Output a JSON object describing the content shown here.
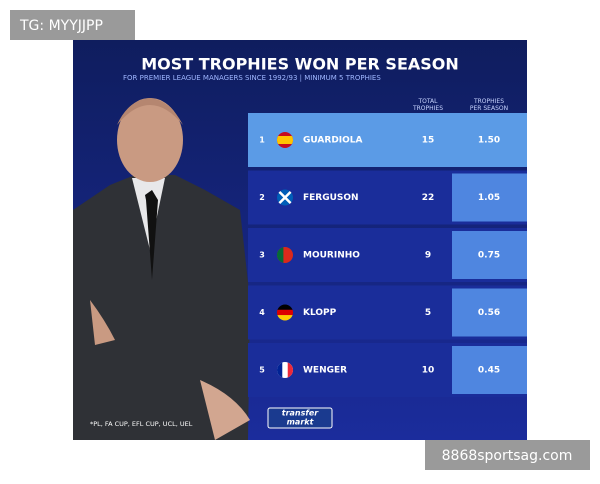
{
  "header": {
    "tag": "TG: MYYJJPP",
    "title": "MOST TROPHIES WON PER SEASON",
    "subtitle": "FOR PREMIER LEAGUE MANAGERS SINCE 1992/93 | MINIMUM 5 TROPHIES"
  },
  "table": {
    "columns": [
      "TOTAL TROPHIES",
      "TROPHIES PER SEASON"
    ],
    "rows": [
      {
        "rank": "1",
        "name": "GUARDIOLA",
        "total": "15",
        "per_season": "1.50"
      },
      {
        "rank": "2",
        "name": "FERGUSON",
        "total": "22",
        "per_season": "1.05"
      },
      {
        "rank": "3",
        "name": "MOURINHO",
        "total": "9",
        "per_season": "0.75"
      },
      {
        "rank": "4",
        "name": "KLOPP",
        "total": "5",
        "per_season": "0.56"
      },
      {
        "rank": "5",
        "name": "WENGER",
        "total": "10",
        "per_season": "0.45"
      }
    ]
  },
  "footnote": "*PL, FA CUP, EFL CUP, UCL, UEL",
  "logo": [
    "transfer",
    "markt"
  ],
  "watermark": "8868sportsag.com"
}
